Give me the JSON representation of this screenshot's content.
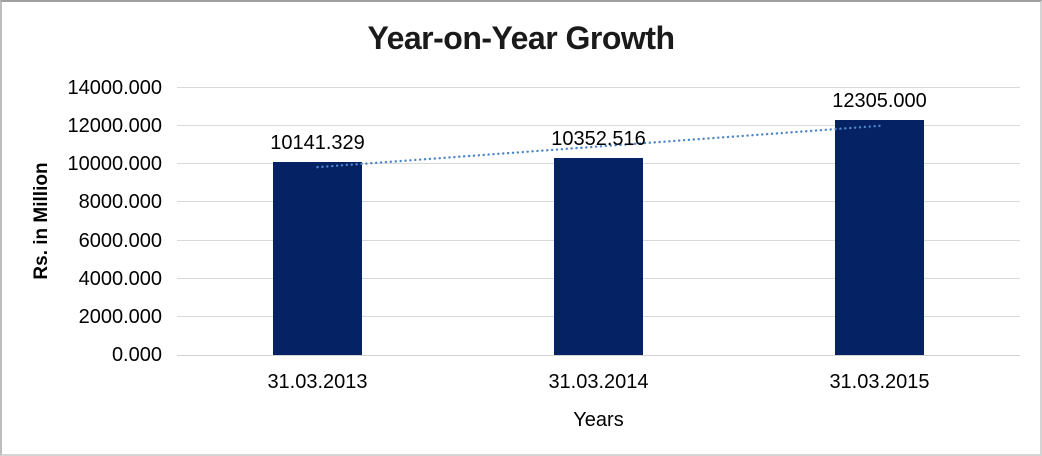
{
  "chart_data": {
    "type": "bar",
    "title": "Year-on-Year Growth",
    "xlabel": "Years",
    "ylabel": "Rs. in Million",
    "categories": [
      "31.03.2013",
      "31.03.2014",
      "31.03.2015"
    ],
    "values": [
      10141.329,
      10352.516,
      12305.0
    ],
    "data_labels": [
      "10141.329",
      "10352.516",
      "12305.000"
    ],
    "ylim": [
      0,
      14000
    ],
    "ytick_step": 2000,
    "yticks": [
      0,
      2000,
      4000,
      6000,
      8000,
      10000,
      12000,
      14000
    ],
    "ytick_labels": [
      "0.000",
      "2000.000",
      "4000.000",
      "6000.000",
      "8000.000",
      "10000.000",
      "12000.000",
      "14000.000"
    ],
    "grid": "horizontal",
    "legend": "none",
    "trendline": {
      "type": "linear",
      "style": "dotted"
    },
    "colors": {
      "bar": "#042264",
      "trendline": "#4C86C8",
      "gridline": "#D9D9D9",
      "axis_line": "#D2D2D2",
      "title_text": "#1A1A1A",
      "label_text": "#000000"
    }
  }
}
